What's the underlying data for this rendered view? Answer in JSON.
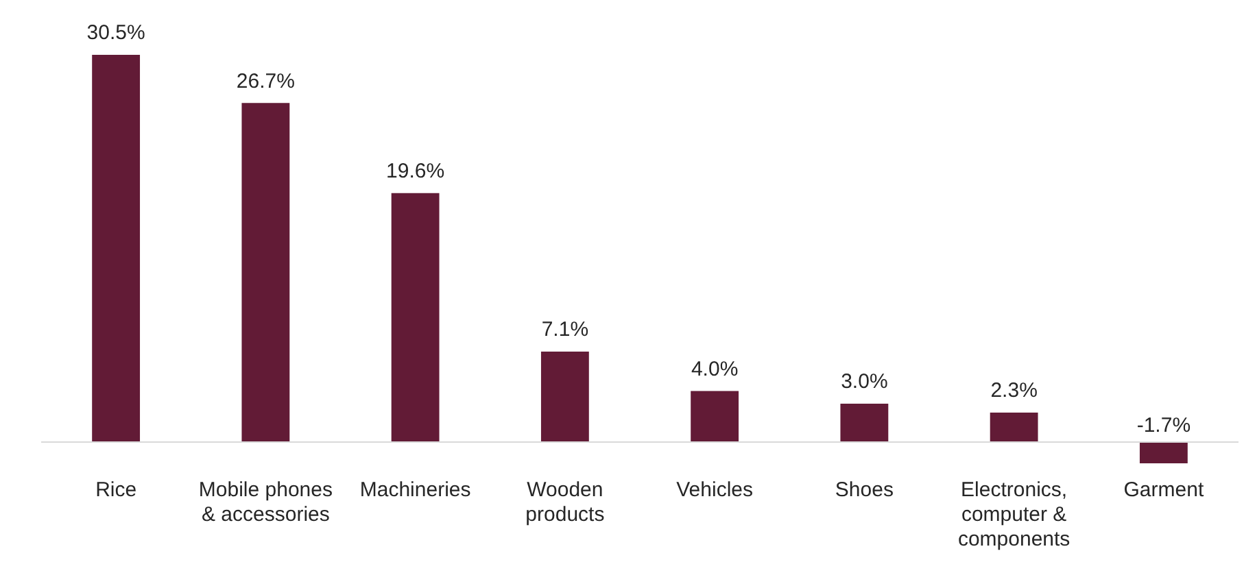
{
  "chart_data": {
    "type": "bar",
    "categories": [
      "Rice",
      "Mobile phones & accessories",
      "Machineries",
      "Wooden products",
      "Vehicles",
      "Shoes",
      "Electronics, computer & components",
      "Garment"
    ],
    "values": [
      30.5,
      26.7,
      19.6,
      7.1,
      4.0,
      3.0,
      2.3,
      -1.7
    ],
    "color": "#621b36",
    "value_labels": [
      "30.5%",
      "26.7%",
      "19.6%",
      "7.1%",
      "4.0%",
      "3.0%",
      "2.3%",
      "-1.7%"
    ],
    "grid": false,
    "legend": false
  }
}
